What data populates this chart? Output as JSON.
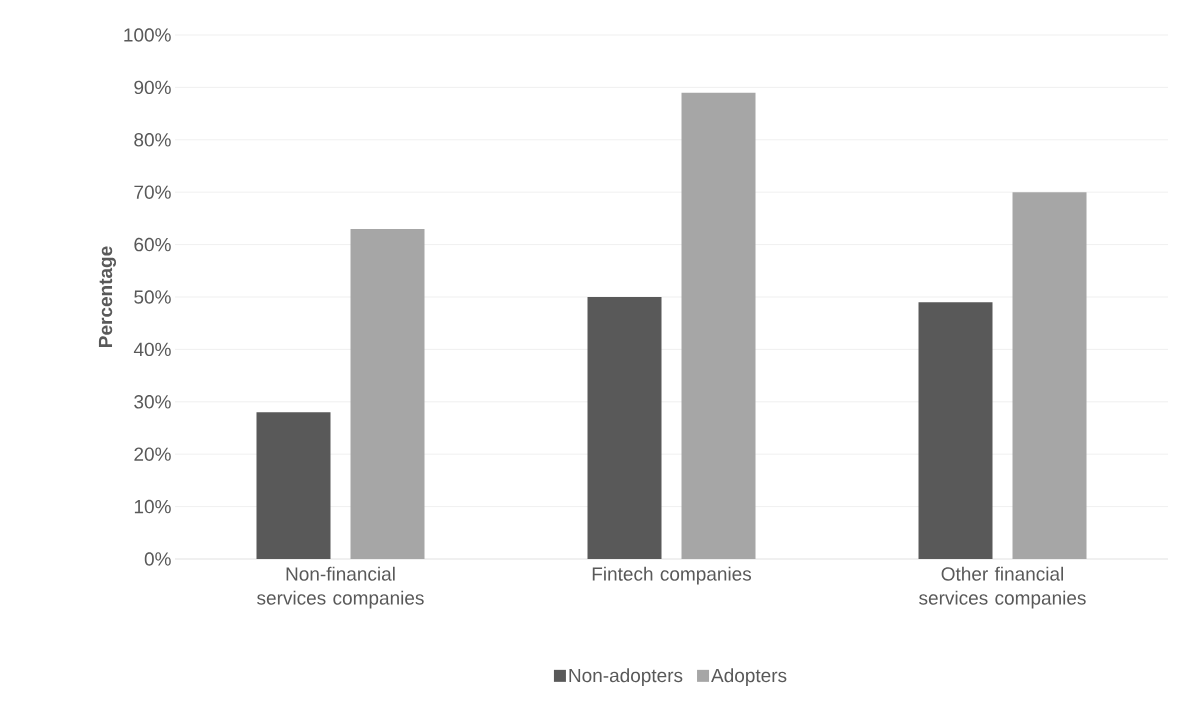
{
  "chart_data": {
    "type": "bar",
    "ylabel": "Percentage",
    "categories": [
      "Non-financial services companies",
      "Fintech companies",
      "Other financial services companies"
    ],
    "series": [
      {
        "name": "Non-adopters",
        "color": "#595959",
        "values": [
          28,
          50,
          49
        ]
      },
      {
        "name": "Adopters",
        "color": "#a6a6a6",
        "values": [
          63,
          89,
          70
        ]
      }
    ],
    "ylim": [
      0,
      100
    ],
    "yticks": [
      {
        "value": 0,
        "label": "0%"
      },
      {
        "value": 10,
        "label": "10%"
      },
      {
        "value": 20,
        "label": "20%"
      },
      {
        "value": 30,
        "label": "30%"
      },
      {
        "value": 40,
        "label": "40%"
      },
      {
        "value": 50,
        "label": "50%"
      },
      {
        "value": 60,
        "label": "60%"
      },
      {
        "value": 70,
        "label": "70%"
      },
      {
        "value": 80,
        "label": "80%"
      },
      {
        "value": 90,
        "label": "90%"
      },
      {
        "value": 100,
        "label": "100%"
      }
    ],
    "grid": "y",
    "legend": "bottom"
  }
}
